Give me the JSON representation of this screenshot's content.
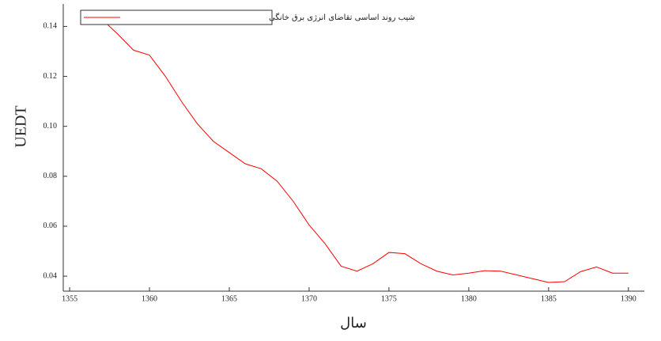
{
  "chart_data": {
    "type": "line",
    "x": [
      1356,
      1357,
      1358,
      1359,
      1360,
      1361,
      1362,
      1363,
      1364,
      1365,
      1366,
      1367,
      1368,
      1369,
      1370,
      1371,
      1372,
      1373,
      1374,
      1375,
      1376,
      1377,
      1378,
      1379,
      1380,
      1381,
      1382,
      1383,
      1384,
      1385,
      1386,
      1387,
      1388,
      1389,
      1390
    ],
    "series": [
      {
        "name": "شیب روند اساسی تقاضای انرژی برق خانگی",
        "color": "#ff0000",
        "values": [
          0.1445,
          0.143,
          0.137,
          0.1305,
          0.1285,
          0.12,
          0.11,
          0.101,
          0.094,
          0.0895,
          0.085,
          0.083,
          0.078,
          0.07,
          0.0605,
          0.053,
          0.044,
          0.042,
          0.045,
          0.0495,
          0.049,
          0.045,
          0.042,
          0.0405,
          0.0412,
          0.0422,
          0.042,
          0.0405,
          0.039,
          0.0375,
          0.0378,
          0.0418,
          0.0437,
          0.0412,
          0.0412
        ]
      }
    ],
    "xlabel": "سال",
    "ylabel": "UEDT",
    "xlim": [
      1354.6,
      1391
    ],
    "xticks": [
      1355,
      1360,
      1365,
      1370,
      1375,
      1380,
      1385,
      1390
    ],
    "ylim": [
      0.034,
      0.149
    ],
    "yticks": [
      0.04,
      0.06,
      0.08,
      {
        "value": 0.1,
        "label": "0.10"
      },
      0.12,
      0.14
    ],
    "legend": "top-left"
  }
}
